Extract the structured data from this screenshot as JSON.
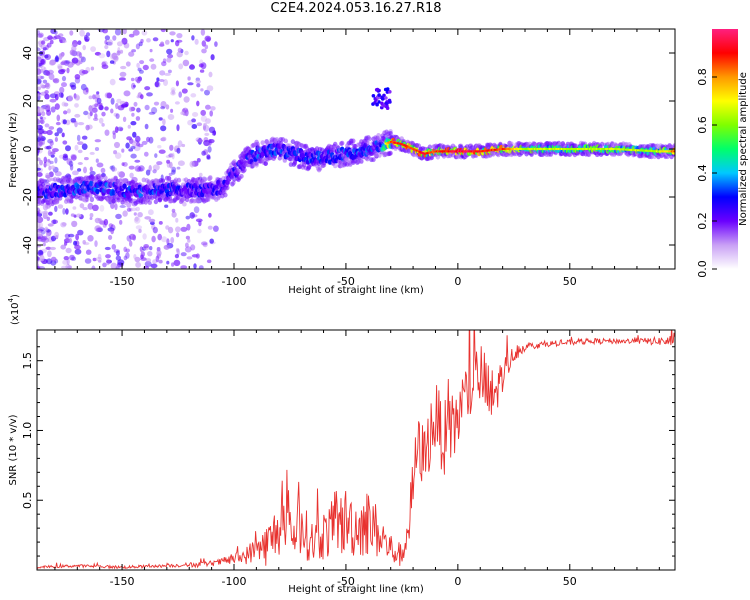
{
  "title": "C2E4.2024.053.16.27.R18",
  "chart_data": [
    {
      "type": "heatmap",
      "xlabel": "Height of straight line (km)",
      "ylabel": "Frequency (Hz)",
      "xlim": [
        -188,
        97
      ],
      "ylim": [
        -50,
        50
      ],
      "xticks": [
        -150,
        -100,
        -50,
        0,
        50
      ],
      "yticks": [
        -40,
        -20,
        0,
        20,
        40
      ],
      "colorbar": {
        "label": "Normalized spectral amplitude",
        "range": [
          0.0,
          1.0
        ],
        "ticks": [
          0.0,
          0.2,
          0.4,
          0.6,
          0.8
        ],
        "colors": [
          "#ffffff",
          "#c9a0f5",
          "#6a00ff",
          "#0000ff",
          "#00c8ff",
          "#00ff6a",
          "#7fff00",
          "#ffff00",
          "#ff9900",
          "#ff0000",
          "#ff2080"
        ]
      },
      "ridge": {
        "x": [
          -188,
          -175,
          -160,
          -145,
          -130,
          -115,
          -105,
          -100,
          -95,
          -90,
          -80,
          -70,
          -60,
          -50,
          -40,
          -35,
          -30,
          -25,
          -20,
          -15,
          -10,
          -5,
          0,
          10,
          20,
          30,
          50,
          70,
          90,
          97
        ],
        "y": [
          -18,
          -17,
          -16,
          -18,
          -17,
          -17,
          -16,
          -10,
          -5,
          -2,
          0,
          -3,
          -4,
          -2,
          0,
          1,
          3,
          2,
          0,
          -2,
          -1,
          -1,
          -1,
          -1,
          0,
          0,
          0,
          0,
          -1,
          -1
        ],
        "amplitude": [
          0.3,
          0.35,
          0.35,
          0.35,
          0.35,
          0.3,
          0.3,
          0.3,
          0.3,
          0.35,
          0.35,
          0.35,
          0.35,
          0.35,
          0.35,
          0.35,
          0.8,
          0.85,
          0.8,
          0.85,
          0.8,
          0.85,
          0.9,
          0.85,
          0.8,
          0.6,
          0.6,
          0.6,
          0.6,
          0.8
        ]
      },
      "annotations": [
        {
          "x": -34,
          "y": 21,
          "amplitude": 0.25
        }
      ]
    },
    {
      "type": "line",
      "xlabel": "Height of straight line (km)",
      "ylabel": "SNR (10 * v/v)",
      "y_multiplier": "(x10",
      "y_multiplier_exp": "4",
      "xlim": [
        -188,
        97
      ],
      "ylim": [
        0.0,
        1.72
      ],
      "xticks": [
        -150,
        -100,
        -50,
        0,
        50
      ],
      "yticks": [
        0.5,
        1.0,
        1.5
      ],
      "color": "#e8322f",
      "x": [
        -188,
        -170,
        -150,
        -130,
        -115,
        -108,
        -100,
        -95,
        -90,
        -85,
        -80,
        -75,
        -70,
        -65,
        -60,
        -55,
        -50,
        -45,
        -40,
        -35,
        -30,
        -25,
        -22,
        -20,
        -18,
        -15,
        -12,
        -10,
        -5,
        0,
        5,
        10,
        15,
        20,
        25,
        30,
        40,
        50,
        60,
        70,
        80,
        90,
        97
      ],
      "y": [
        0.02,
        0.03,
        0.02,
        0.03,
        0.04,
        0.05,
        0.08,
        0.1,
        0.15,
        0.18,
        0.3,
        0.25,
        0.3,
        0.2,
        0.25,
        0.3,
        0.35,
        0.3,
        0.35,
        0.25,
        0.15,
        0.1,
        0.3,
        0.6,
        0.9,
        0.8,
        1.0,
        1.1,
        0.9,
        1.1,
        1.3,
        1.4,
        1.2,
        1.4,
        1.55,
        1.6,
        1.62,
        1.63,
        1.64,
        1.64,
        1.64,
        1.64,
        1.64
      ],
      "noise": [
        0.01,
        0.01,
        0.01,
        0.01,
        0.02,
        0.02,
        0.04,
        0.06,
        0.1,
        0.16,
        0.2,
        0.18,
        0.2,
        0.16,
        0.18,
        0.22,
        0.25,
        0.22,
        0.25,
        0.18,
        0.12,
        0.08,
        0.15,
        0.25,
        0.2,
        0.25,
        0.25,
        0.25,
        0.3,
        0.25,
        0.25,
        0.25,
        0.25,
        0.12,
        0.06,
        0.03,
        0.02,
        0.02,
        0.02,
        0.02,
        0.02,
        0.03,
        0.05
      ]
    }
  ]
}
